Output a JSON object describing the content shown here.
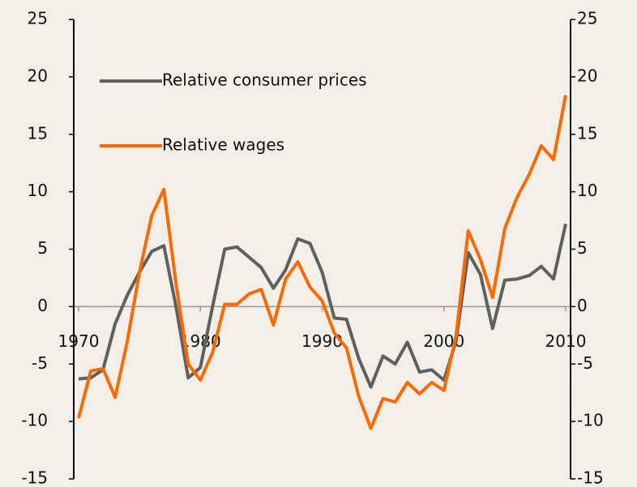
{
  "chart_data": {
    "type": "line",
    "x": [
      1970,
      1971,
      1972,
      1973,
      1974,
      1975,
      1976,
      1977,
      1978,
      1979,
      1980,
      1981,
      1982,
      1983,
      1984,
      1985,
      1986,
      1987,
      1988,
      1989,
      1990,
      1991,
      1992,
      1993,
      1994,
      1995,
      1996,
      1997,
      1998,
      1999,
      2000,
      2001,
      2002,
      2003,
      2004,
      2005,
      2006,
      2007,
      2008,
      2009,
      2010
    ],
    "series": [
      {
        "name": "Relative consumer prices",
        "color": "#5f5f5f",
        "values": [
          -6.3,
          -6.2,
          -5.5,
          -1.5,
          1,
          3,
          4.8,
          5.3,
          0,
          -6.2,
          -5.3,
          0,
          5,
          5.2,
          4.3,
          3.4,
          1.6,
          3.2,
          5.9,
          5.5,
          3,
          -1,
          -1.1,
          -4.5,
          -7,
          -4.3,
          -5,
          -3.1,
          -5.7,
          -5.5,
          -6.4,
          -3,
          4.7,
          2.8,
          -1.9,
          2.3,
          2.4,
          2.7,
          3.5,
          2.4,
          7.2
        ]
      },
      {
        "name": "Relative wages",
        "color": "#ff6a00",
        "values": [
          -9.7,
          -5.6,
          -5.4,
          -7.9,
          -3,
          3,
          7.9,
          10.2,
          2,
          -5,
          -6.4,
          -4,
          0.2,
          0.2,
          1.1,
          1.5,
          -1.6,
          2.4,
          3.9,
          1.7,
          0.5,
          -2.3,
          -3.6,
          -7.8,
          -10.6,
          -8,
          -8.3,
          -6.6,
          -7.6,
          -6.6,
          -7.3,
          -2.5,
          6.6,
          4.1,
          0.8,
          6.8,
          9.5,
          11.5,
          14,
          12.8,
          18.4
        ]
      }
    ],
    "xlim": [
      1969.6,
      2010.4
    ],
    "xticks": [
      1970,
      1980,
      1990,
      2000,
      2010
    ],
    "ylim": [
      -15,
      25
    ],
    "yticks": [
      -15,
      -10,
      -5,
      0,
      5,
      10,
      15,
      20,
      25
    ],
    "y2lim": [
      -15,
      25
    ],
    "y2ticks": [
      -15,
      -10,
      -5,
      0,
      5,
      10,
      15,
      20,
      25
    ]
  }
}
